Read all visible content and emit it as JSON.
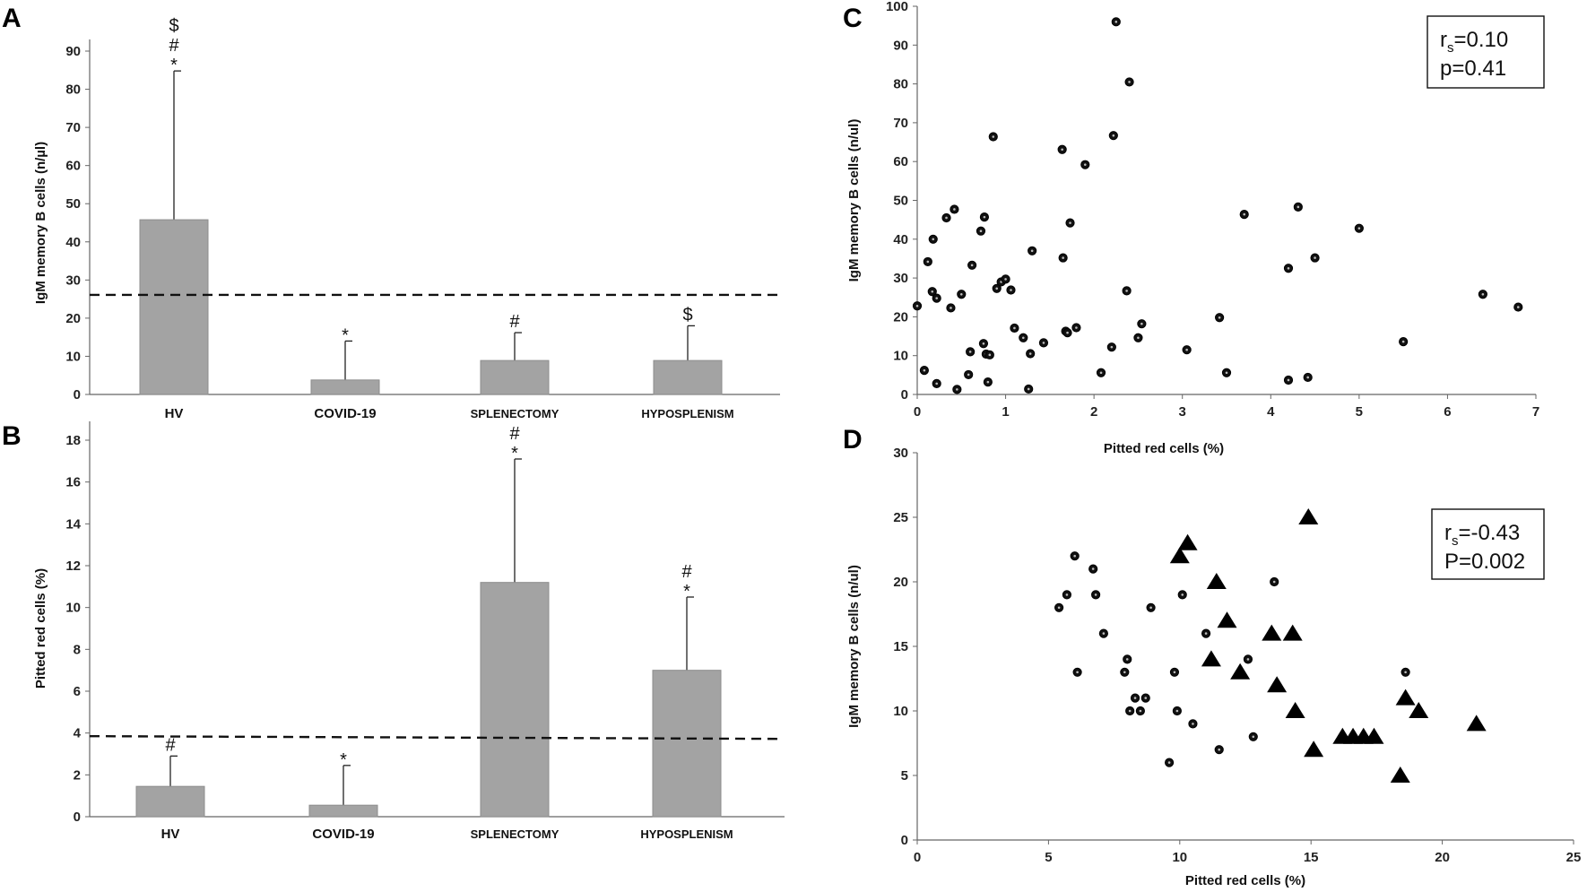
{
  "chart_data": [
    {
      "panel": "A",
      "type": "bar",
      "ylabel": "IgM memory B cells (n/µl)",
      "ylim": [
        0,
        90
      ],
      "yticks": [
        "0",
        "10",
        "20",
        "30",
        "40",
        "50",
        "60",
        "70",
        "80",
        "90"
      ],
      "categories": [
        "HV",
        "COVID-19",
        "SPLENECTOMY",
        "HYPOSPLENISM"
      ],
      "values": [
        45.8,
        3.8,
        8.9,
        8.9
      ],
      "error_upper": [
        84.8,
        14.0,
        16.2,
        18.0
      ],
      "significance": [
        [
          "*",
          "#",
          "$"
        ],
        [
          "*"
        ],
        [
          "#"
        ],
        [
          "$"
        ]
      ],
      "reference_line": 26.1
    },
    {
      "panel": "B",
      "type": "bar",
      "ylabel": "Pitted red cells  (%)",
      "ylim": [
        0,
        18
      ],
      "yticks": [
        "0",
        "2",
        "4",
        "6",
        "8",
        "10",
        "12",
        "14",
        "16",
        "18"
      ],
      "categories": [
        "HV",
        "COVID-19",
        "SPLENECTOMY",
        "HYPOSPLENISM"
      ],
      "values": [
        1.45,
        0.55,
        11.2,
        7.0
      ],
      "error_upper": [
        2.9,
        2.45,
        17.1,
        10.5
      ],
      "significance": [
        [
          "#"
        ],
        [
          "*"
        ],
        [
          "*",
          "#"
        ],
        [
          "*",
          "#"
        ]
      ],
      "reference_line": 3.85
    },
    {
      "panel": "C",
      "type": "scatter",
      "xlabel": "Pitted red cells (%)",
      "ylabel": "IgM memory B cells (n/ul)",
      "xlim": [
        0,
        7
      ],
      "ylim": [
        0,
        100
      ],
      "xticks": [
        "0",
        "1",
        "2",
        "3",
        "4",
        "5",
        "6",
        "7"
      ],
      "yticks": [
        "0",
        "10",
        "20",
        "30",
        "40",
        "50",
        "60",
        "70",
        "80",
        "90",
        "100"
      ],
      "annotation": {
        "r_main": "r",
        "r_sub": "s",
        "r_value": "=0.10",
        "p": "p=0.41"
      },
      "series": [
        {
          "name": "dots",
          "marker": "circle",
          "points": [
            [
              0.0,
              22.8
            ],
            [
              0.08,
              6.2
            ],
            [
              0.12,
              34.2
            ],
            [
              0.17,
              26.5
            ],
            [
              0.18,
              40.0
            ],
            [
              0.22,
              2.8
            ],
            [
              0.22,
              24.8
            ],
            [
              0.33,
              45.5
            ],
            [
              0.38,
              22.3
            ],
            [
              0.42,
              47.7
            ],
            [
              0.45,
              1.3
            ],
            [
              0.5,
              25.8
            ],
            [
              0.58,
              5.1
            ],
            [
              0.6,
              11.0
            ],
            [
              0.62,
              33.3
            ],
            [
              0.72,
              42.1
            ],
            [
              0.75,
              13.1
            ],
            [
              0.76,
              45.7
            ],
            [
              0.78,
              10.4
            ],
            [
              0.8,
              3.2
            ],
            [
              0.82,
              10.2
            ],
            [
              0.86,
              66.4
            ],
            [
              0.9,
              27.3
            ],
            [
              0.95,
              29.0
            ],
            [
              1.0,
              29.7
            ],
            [
              1.06,
              26.9
            ],
            [
              1.1,
              17.1
            ],
            [
              1.2,
              14.6
            ],
            [
              1.26,
              1.4
            ],
            [
              1.28,
              10.5
            ],
            [
              1.3,
              37.0
            ],
            [
              1.43,
              13.3
            ],
            [
              1.64,
              63.1
            ],
            [
              1.65,
              35.2
            ],
            [
              1.68,
              16.3
            ],
            [
              1.7,
              15.9
            ],
            [
              1.73,
              44.2
            ],
            [
              1.8,
              17.2
            ],
            [
              1.9,
              59.2
            ],
            [
              2.08,
              5.6
            ],
            [
              2.2,
              12.2
            ],
            [
              2.22,
              66.7
            ],
            [
              2.25,
              96.0
            ],
            [
              2.37,
              26.7
            ],
            [
              2.4,
              80.5
            ],
            [
              2.5,
              14.6
            ],
            [
              2.54,
              18.2
            ],
            [
              3.05,
              11.5
            ],
            [
              3.42,
              19.8
            ],
            [
              3.5,
              5.6
            ],
            [
              3.7,
              46.4
            ],
            [
              4.2,
              3.7
            ],
            [
              4.2,
              32.5
            ],
            [
              4.31,
              48.3
            ],
            [
              4.42,
              4.4
            ],
            [
              4.5,
              35.2
            ],
            [
              5.0,
              42.8
            ],
            [
              5.5,
              13.6
            ],
            [
              6.4,
              25.8
            ],
            [
              6.8,
              22.5
            ]
          ]
        }
      ]
    },
    {
      "panel": "D",
      "type": "scatter",
      "xlabel": "Pitted red cells (%)",
      "ylabel": "IgM memory B cells (n/ul)",
      "xlim": [
        0,
        25
      ],
      "ylim": [
        0,
        30
      ],
      "xticks": [
        "0",
        "5",
        "10",
        "15",
        "20",
        "25"
      ],
      "yticks": [
        "0",
        "5",
        "10",
        "15",
        "20",
        "25",
        "30"
      ],
      "annotation": {
        "r_main": "r",
        "r_sub": "s",
        "r_value": "=-0.43",
        "p": "P=0.002"
      },
      "series": [
        {
          "name": "dots",
          "marker": "circle",
          "points": [
            [
              5.4,
              18
            ],
            [
              5.7,
              19
            ],
            [
              6.0,
              22
            ],
            [
              6.1,
              13
            ],
            [
              6.7,
              21
            ],
            [
              6.8,
              19
            ],
            [
              7.1,
              16
            ],
            [
              7.9,
              13
            ],
            [
              8.0,
              14
            ],
            [
              8.1,
              10
            ],
            [
              8.3,
              11
            ],
            [
              8.5,
              10
            ],
            [
              8.7,
              11
            ],
            [
              8.9,
              18
            ],
            [
              9.6,
              6
            ],
            [
              9.8,
              13
            ],
            [
              9.9,
              10
            ],
            [
              10.1,
              19
            ],
            [
              10.5,
              9
            ],
            [
              11.0,
              16
            ],
            [
              11.5,
              7
            ],
            [
              12.6,
              14
            ],
            [
              12.8,
              8
            ],
            [
              13.6,
              20
            ],
            [
              18.6,
              13
            ]
          ]
        },
        {
          "name": "triangles",
          "marker": "triangle",
          "points": [
            [
              10.0,
              22
            ],
            [
              10.3,
              23
            ],
            [
              11.2,
              14
            ],
            [
              11.4,
              20
            ],
            [
              11.8,
              17
            ],
            [
              12.3,
              13
            ],
            [
              13.5,
              16
            ],
            [
              13.7,
              12
            ],
            [
              14.3,
              16
            ],
            [
              14.4,
              10
            ],
            [
              14.9,
              25
            ],
            [
              15.1,
              7
            ],
            [
              16.2,
              8
            ],
            [
              16.6,
              8
            ],
            [
              17.0,
              8
            ],
            [
              17.4,
              8
            ],
            [
              18.4,
              5
            ],
            [
              18.6,
              11
            ],
            [
              19.1,
              10
            ],
            [
              21.3,
              9
            ]
          ]
        }
      ]
    }
  ]
}
